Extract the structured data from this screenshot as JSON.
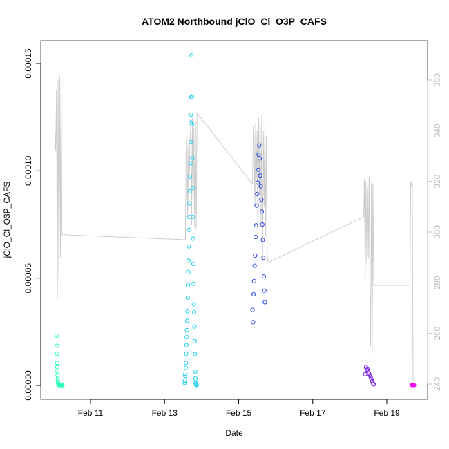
{
  "chart_data": {
    "type": "scatter",
    "title": "ATOM2 Northbound jClO_Cl_O3P_CAFS",
    "xlabel": "Date",
    "ylabel": "jClO_Cl_O3P_CAFS",
    "x_ticks": [
      "Feb 11",
      "Feb 13",
      "Feb 15",
      "Feb 17",
      "Feb 19"
    ],
    "y_ticks": [
      "0.00000",
      "0.00005",
      "0.00010",
      "0.00015"
    ],
    "y2_ticks": [
      "240",
      "260",
      "280",
      "300",
      "320",
      "340",
      "360"
    ],
    "xlim": [
      "2016-02-09 20:00",
      "2016-02-20 20:00"
    ],
    "ylim": [
      -5e-06,
      0.000157
    ],
    "y2lim": [
      238,
      368
    ],
    "grid": false,
    "series": [
      {
        "kind": "points",
        "x": [
          "2016-02-10 02:10",
          "2016-02-10 02:15",
          "2016-02-10 02:20",
          "2016-02-10 02:25",
          "2016-02-10 02:30",
          "2016-02-10 02:35",
          "2016-02-10 02:40",
          "2016-02-10 02:45",
          "2016-02-10 02:50",
          "2016-02-10 03:00",
          "2016-02-10 03:10",
          "2016-02-10 03:20",
          "2016-02-10 03:30",
          "2016-02-10 03:40",
          "2016-02-10 03:50",
          "2016-02-10 04:10",
          "2016-02-10 04:30",
          "2016-02-10 04:50",
          "2016-02-10 05:10",
          "2016-02-10 05:30",
          "2016-02-10 05:50",
          "2016-02-13 13:00",
          "2016-02-13 13:10",
          "2016-02-13 13:20",
          "2016-02-13 13:30",
          "2016-02-13 13:40",
          "2016-02-13 13:50",
          "2016-02-13 14:00",
          "2016-02-13 14:10",
          "2016-02-13 14:20",
          "2016-02-13 14:30",
          "2016-02-13 14:40",
          "2016-02-13 14:50",
          "2016-02-13 15:00",
          "2016-02-13 15:10",
          "2016-02-13 15:20",
          "2016-02-13 15:30",
          "2016-02-13 15:40",
          "2016-02-13 15:50",
          "2016-02-13 16:00",
          "2016-02-13 16:10",
          "2016-02-13 16:20",
          "2016-02-13 16:30",
          "2016-02-13 16:40",
          "2016-02-13 16:50",
          "2016-02-13 17:00",
          "2016-02-13 17:10",
          "2016-02-13 17:20",
          "2016-02-13 17:30",
          "2016-02-13 17:40",
          "2016-02-13 17:50",
          "2016-02-13 18:00",
          "2016-02-13 18:10",
          "2016-02-13 18:20",
          "2016-02-13 18:30",
          "2016-02-13 18:40",
          "2016-02-13 18:50",
          "2016-02-13 19:00",
          "2016-02-13 19:10",
          "2016-02-13 19:20",
          "2016-02-13 19:30",
          "2016-02-13 19:40",
          "2016-02-13 19:50",
          "2016-02-13 20:00",
          "2016-02-13 20:10",
          "2016-02-13 20:20",
          "2016-02-13 20:30",
          "2016-02-13 20:40",
          "2016-02-13 20:50",
          "2016-02-15 09:00",
          "2016-02-15 09:20",
          "2016-02-15 09:40",
          "2016-02-15 10:00",
          "2016-02-15 10:20",
          "2016-02-15 10:40",
          "2016-02-15 11:00",
          "2016-02-15 11:20",
          "2016-02-15 11:40",
          "2016-02-15 12:00",
          "2016-02-15 12:20",
          "2016-02-15 12:40",
          "2016-02-15 13:00",
          "2016-02-15 13:20",
          "2016-02-15 13:40",
          "2016-02-15 14:00",
          "2016-02-15 14:20",
          "2016-02-15 14:40",
          "2016-02-15 15:00",
          "2016-02-15 15:20",
          "2016-02-15 15:40",
          "2016-02-15 16:00",
          "2016-02-15 16:20",
          "2016-02-15 16:40",
          "2016-02-15 17:00",
          "2016-02-18 10:00",
          "2016-02-18 10:30",
          "2016-02-18 11:00",
          "2016-02-18 11:30",
          "2016-02-18 12:00",
          "2016-02-18 12:30",
          "2016-02-18 13:00",
          "2016-02-18 13:30",
          "2016-02-18 14:00",
          "2016-02-18 14:30",
          "2016-02-18 15:00",
          "2016-02-18 15:30",
          "2016-02-19 16:00",
          "2016-02-19 16:20",
          "2016-02-19 16:40",
          "2016-02-19 17:00",
          "2016-02-19 17:20",
          "2016-02-19 17:40"
        ],
        "y": [
          2.32e-05,
          1.85e-05,
          1.48e-05,
          1.05e-05,
          8.5e-06,
          6.5e-06,
          4.5e-06,
          3e-06,
          2e-06,
          1e-06,
          5e-07,
          2e-07,
          3e-07,
          2e-07,
          3e-07,
          2e-07,
          1e-07,
          1e-07,
          1e-07,
          1e-07,
          1e-07,
          1.2e-06,
          2.3e-06,
          4.5e-06,
          5.5e-06,
          8.2e-06,
          1.05e-05,
          1.48e-05,
          1.88e-05,
          2.25e-05,
          2.58e-05,
          3.02e-05,
          3.45e-05,
          4.08e-05,
          4.68e-05,
          5.28e-05,
          5.82e-05,
          6.48e-05,
          7.25e-05,
          7.85e-05,
          8.48e-05,
          9.05e-05,
          9.72e-05,
          0.0001035,
          0.0001135,
          0.0001225,
          0.0001262,
          0.0001342,
          0.0001538,
          0.0001346,
          0.0001216,
          0.000106,
          9.2e-05,
          7.85e-05,
          6.84e-05,
          5.66e-05,
          4.74e-05,
          3.78e-05,
          3.42e-05,
          2.75e-05,
          2.06e-05,
          1.46e-05,
          6.5e-06,
          3.2e-06,
          1.2e-06,
          6e-07,
          3e-07,
          2e-07,
          2e-07,
          3.52e-05,
          2.95e-05,
          4.25e-05,
          4.86e-05,
          5.58e-05,
          6.05e-05,
          6.92e-05,
          7.46e-05,
          8.38e-05,
          8.92e-05,
          9.45e-05,
          0.0001005,
          0.0001075,
          0.0001118,
          0.0001058,
          9.78e-05,
          9.28e-05,
          8.66e-05,
          8.1e-05,
          7.5e-05,
          6.78e-05,
          5.95e-05,
          5.08e-05,
          4.42e-05,
          3.88e-05,
          5.2e-06,
          8.5e-06,
          7.2e-06,
          7.5e-06,
          6e-06,
          5.5e-06,
          4.8e-06,
          4e-06,
          3e-06,
          2e-06,
          1e-06,
          5e-07,
          3e-07,
          2e-07,
          2e-07,
          2e-07,
          2e-07,
          1e-07
        ],
        "colors": [
          "#2bffbe",
          "#2bffbe",
          "#2bffbe",
          "#2bffbe",
          "#2bffbe",
          "#2bffbe",
          "#2bffbe",
          "#2bffbe",
          "#2bffbe",
          "#2bffbe",
          "#2bffbe",
          "#2bffbe",
          "#2bffbe",
          "#2bffbe",
          "#2bffbe",
          "#2bffbe",
          "#2bffbe",
          "#2bffbe",
          "#2bffbe",
          "#2bffbe",
          "#2bffbe",
          "#1ccfee",
          "#1ccfee",
          "#1ccfee",
          "#1ccfee",
          "#1ccfee",
          "#1ccfee",
          "#1ccfee",
          "#1ccfee",
          "#1ccfee",
          "#1ccfee",
          "#1ccfee",
          "#1ccfee",
          "#1ccfee",
          "#1ccfee",
          "#1ccfee",
          "#1ccfee",
          "#1ccfee",
          "#1ccfee",
          "#1ccfee",
          "#1ccfee",
          "#1ccfee",
          "#1ccfee",
          "#1ccfee",
          "#1ccfee",
          "#1ccfee",
          "#1ccfee",
          "#1ccfee",
          "#1ccfee",
          "#1ccfee",
          "#1ccfee",
          "#1ccfee",
          "#1ccfee",
          "#1ccfee",
          "#1ccfee",
          "#1ccfee",
          "#1ccfee",
          "#1ccfee",
          "#1ccfee",
          "#1ccfee",
          "#1ccfee",
          "#1ccfee",
          "#1ccfee",
          "#1ccfee",
          "#1ccfee",
          "#1ccfee",
          "#1ccfee",
          "#1ccfee",
          "#1ccfee",
          "#2a44ee",
          "#2a44ee",
          "#2a44ee",
          "#2a44ee",
          "#2a44ee",
          "#2a44ee",
          "#2a44ee",
          "#2a44ee",
          "#2a44ee",
          "#2a44ee",
          "#2a44ee",
          "#2a44ee",
          "#2a44ee",
          "#2a44ee",
          "#2a44ee",
          "#2a44ee",
          "#2a44ee",
          "#2a44ee",
          "#2a44ee",
          "#2a44ee",
          "#2a44ee",
          "#2a44ee",
          "#2a44ee",
          "#2a44ee",
          "#2a44ee",
          "#7a22ee",
          "#7a22ee",
          "#7a22ee",
          "#7a22ee",
          "#7a22ee",
          "#7a22ee",
          "#7a22ee",
          "#7a22ee",
          "#7a22ee",
          "#7a22ee",
          "#7a22ee",
          "#7a22ee",
          "#ee11ee",
          "#ee11ee",
          "#ee11ee",
          "#ee11ee",
          "#ee11ee",
          "#ee11ee"
        ]
      },
      {
        "kind": "line",
        "color": "#cccccc",
        "axis": "right",
        "x": [
          "2016-02-10 01:00",
          "2016-02-10 01:30",
          "2016-02-10 02:00",
          "2016-02-10 02:30",
          "2016-02-10 03:00",
          "2016-02-10 03:30",
          "2016-02-10 04:00",
          "2016-02-10 04:30",
          "2016-02-10 05:00",
          "2016-02-10 05:30",
          "2016-02-13 13:30",
          "2016-02-13 14:00",
          "2016-02-13 14:30",
          "2016-02-13 15:00",
          "2016-02-13 15:30",
          "2016-02-13 16:00",
          "2016-02-13 16:30",
          "2016-02-13 17:00",
          "2016-02-13 17:30",
          "2016-02-13 18:00",
          "2016-02-13 18:30",
          "2016-02-13 19:00",
          "2016-02-13 19:30",
          "2016-02-13 20:00",
          "2016-02-13 20:30",
          "2016-02-13 21:00",
          "2016-02-15 09:00",
          "2016-02-15 09:30",
          "2016-02-15 10:00",
          "2016-02-15 10:30",
          "2016-02-15 11:00",
          "2016-02-15 11:30",
          "2016-02-15 12:00",
          "2016-02-15 12:30",
          "2016-02-15 13:00",
          "2016-02-15 13:30",
          "2016-02-15 14:00",
          "2016-02-15 14:30",
          "2016-02-15 15:00",
          "2016-02-15 15:30",
          "2016-02-15 16:00",
          "2016-02-15 16:30",
          "2016-02-15 17:00",
          "2016-02-15 17:30",
          "2016-02-15 18:00",
          "2016-02-15 18:30",
          "2016-02-15 19:00",
          "2016-02-18 09:00",
          "2016-02-18 09:30",
          "2016-02-18 10:00",
          "2016-02-18 10:30",
          "2016-02-18 11:00",
          "2016-02-18 11:30",
          "2016-02-18 12:00",
          "2016-02-18 12:30",
          "2016-02-18 13:00",
          "2016-02-18 13:30",
          "2016-02-18 14:00",
          "2016-02-18 14:30",
          "2016-02-18 15:00",
          "2016-02-18 15:30",
          "2016-02-19 15:00",
          "2016-02-19 15:30",
          "2016-02-19 16:00",
          "2016-02-19 16:30",
          "2016-02-19 17:00",
          "2016-02-19 17:30",
          "2016-02-19 18:00"
        ],
        "y": [
          340,
          332,
          356,
          274,
          360,
          282,
          362,
          290,
          364,
          299,
          297,
          332,
          340,
          306,
          334,
          322,
          337,
          342,
          303,
          345,
          310,
          341,
          302,
          344,
          301,
          347,
          319,
          342,
          338,
          310,
          343,
          321,
          340,
          296,
          345,
          315,
          342,
          304,
          346,
          288,
          340,
          310,
          344,
          298,
          338,
          291,
          288,
          306,
          321,
          281,
          320,
          287,
          318,
          290,
          322,
          284,
          255,
          320,
          252,
          319,
          279,
          279,
          320,
          318,
          320,
          240,
          240,
          240
        ]
      }
    ]
  }
}
